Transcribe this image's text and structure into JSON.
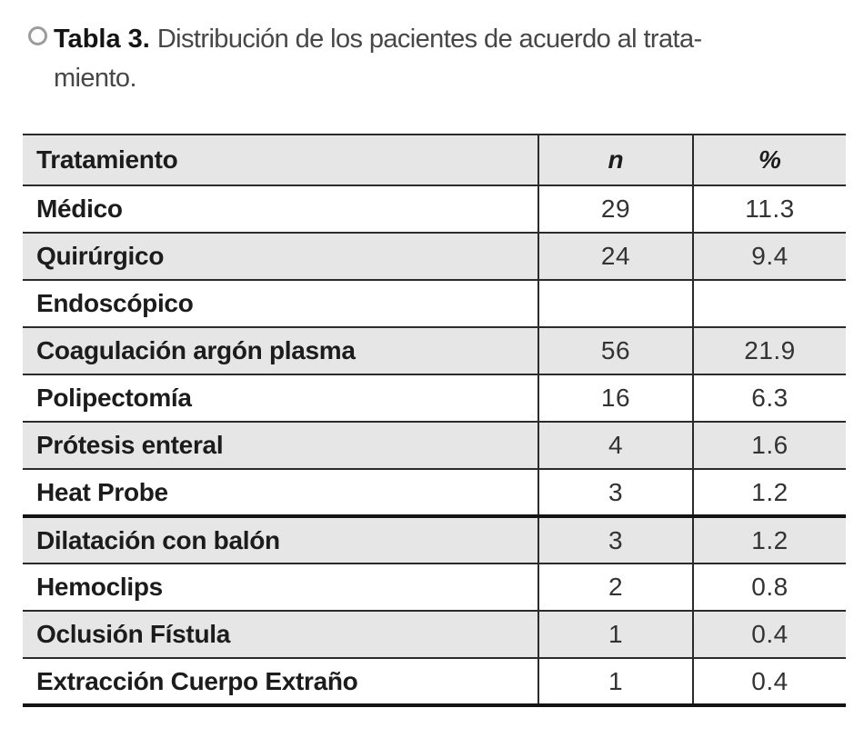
{
  "figure_caption": {
    "bullet_icon": "circle-outline",
    "label": "Tabla 3.",
    "line1": "Distribución de los pacientes de acuerdo al trata-",
    "line2": "miento."
  },
  "table": {
    "columns": [
      "Tratamiento",
      "n",
      "%"
    ],
    "rows": [
      {
        "tratamiento": "Médico",
        "n": "29",
        "pct": "11.3"
      },
      {
        "tratamiento": "Quirúrgico",
        "n": "24",
        "pct": "9.4"
      },
      {
        "tratamiento": "Endoscópico",
        "n": "",
        "pct": ""
      },
      {
        "tratamiento": "Coagulación argón plasma",
        "n": "56",
        "pct": "21.9"
      },
      {
        "tratamiento": "Polipectomía",
        "n": "16",
        "pct": "6.3"
      },
      {
        "tratamiento": "Prótesis enteral",
        "n": "4",
        "pct": "1.6"
      },
      {
        "tratamiento": "Heat Probe",
        "n": "3",
        "pct": "1.2"
      },
      {
        "tratamiento": "Dilatación con balón",
        "n": "3",
        "pct": "1.2"
      },
      {
        "tratamiento": "Hemoclips",
        "n": "2",
        "pct": "0.8"
      },
      {
        "tratamiento": "Oclusión Fístula",
        "n": "1",
        "pct": "0.4"
      },
      {
        "tratamiento": "Extracción Cuerpo Extraño",
        "n": "1",
        "pct": "0.4"
      }
    ]
  },
  "colors": {
    "row_shade": "#e6e6e6",
    "rule_thin": "#2b2b2b",
    "rule_thick": "#131313",
    "label_text": "#1c1c1c",
    "number_text": "#333333",
    "caption_text": "#474747",
    "bullet_ring": "#9c9c9c"
  }
}
